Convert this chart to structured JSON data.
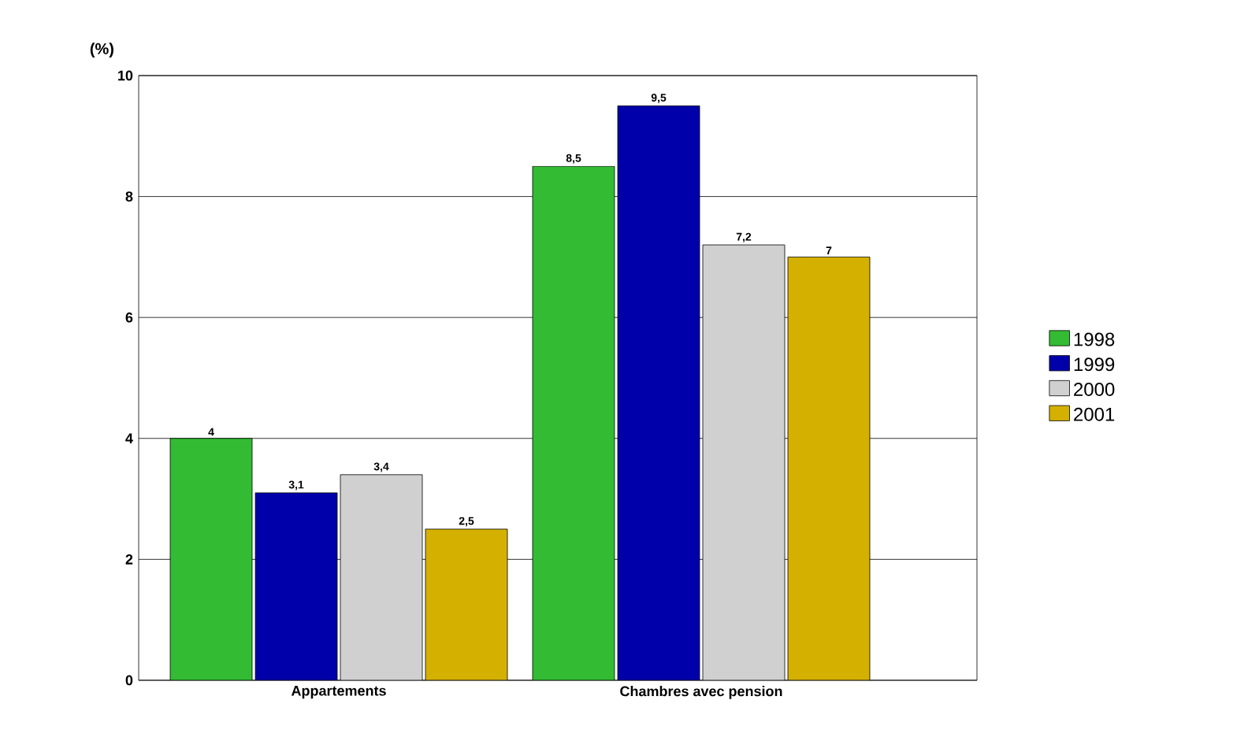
{
  "chart_data": {
    "type": "bar",
    "ylabel": "(%)",
    "categories": [
      "Appartements",
      "Chambres avec pension"
    ],
    "series": [
      {
        "name": "1998",
        "color": "#33bb33",
        "values": [
          4,
          8.5
        ],
        "value_labels": [
          "4",
          "8,5"
        ]
      },
      {
        "name": "1999",
        "color": "#0000aa",
        "values": [
          3.1,
          9.5
        ],
        "value_labels": [
          "3,1",
          "9,5"
        ]
      },
      {
        "name": "2000",
        "color": "#d0d0d0",
        "values": [
          3.4,
          7.2
        ],
        "value_labels": [
          "3,4",
          "7,2"
        ]
      },
      {
        "name": "2001",
        "color": "#d4b000",
        "values": [
          2.5,
          7
        ],
        "value_labels": [
          "2,5",
          "7"
        ]
      }
    ],
    "ylim": [
      0,
      10
    ],
    "yticks": [
      0,
      2,
      4,
      6,
      8,
      10
    ],
    "grid": "y",
    "legend": "right"
  }
}
